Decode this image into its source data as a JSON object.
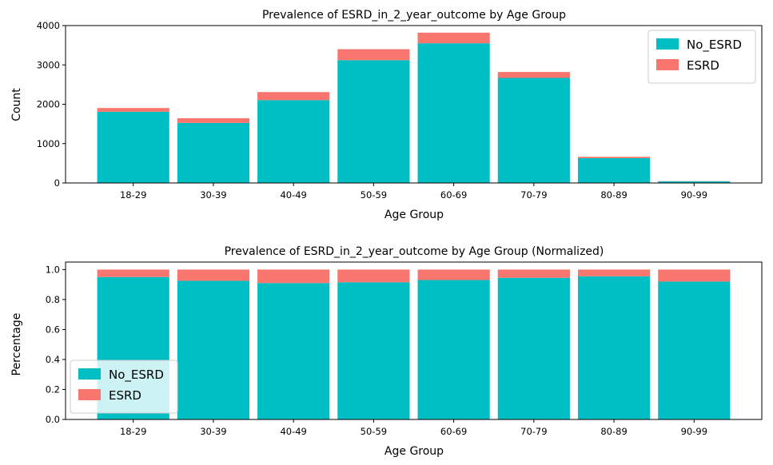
{
  "colors": {
    "no_esrd": "#00BFC4",
    "esrd": "#F8766D"
  },
  "chart_data": [
    {
      "type": "bar",
      "stacked": true,
      "title": "Prevalence of ESRD_in_2_year_outcome by Age Group",
      "xlabel": "Age Group",
      "ylabel": "Count",
      "ylim": [
        0,
        4000
      ],
      "yticks": [
        0,
        1000,
        2000,
        3000,
        4000
      ],
      "ytick_labels": [
        "0",
        "1000",
        "2000",
        "3000",
        "4000"
      ],
      "categories": [
        "18-29",
        "30-39",
        "40-49",
        "50-59",
        "60-69",
        "70-79",
        "80-89",
        "90-99"
      ],
      "series": [
        {
          "name": "No_ESRD",
          "values": [
            1810,
            1525,
            2105,
            3120,
            3550,
            2670,
            630,
            40
          ]
        },
        {
          "name": "ESRD",
          "values": [
            95,
            120,
            205,
            280,
            270,
            150,
            35,
            5
          ]
        }
      ],
      "legend_position": "upper right"
    },
    {
      "type": "bar",
      "stacked": true,
      "title": "Prevalence of ESRD_in_2_year_outcome by Age Group (Normalized)",
      "xlabel": "Age Group",
      "ylabel": "Percentage",
      "ylim": [
        0,
        1.05
      ],
      "yticks": [
        0,
        0.2,
        0.4,
        0.6,
        0.8,
        1.0
      ],
      "ytick_labels": [
        "0.0",
        "0.2",
        "0.4",
        "0.6",
        "0.8",
        "1.0"
      ],
      "categories": [
        "18-29",
        "30-39",
        "40-49",
        "50-59",
        "60-69",
        "70-79",
        "80-89",
        "90-99"
      ],
      "series": [
        {
          "name": "No_ESRD",
          "values": [
            0.95,
            0.925,
            0.91,
            0.915,
            0.93,
            0.945,
            0.955,
            0.92
          ]
        },
        {
          "name": "ESRD",
          "values": [
            0.05,
            0.075,
            0.09,
            0.085,
            0.07,
            0.055,
            0.045,
            0.08
          ]
        }
      ],
      "legend_position": "lower left"
    }
  ]
}
